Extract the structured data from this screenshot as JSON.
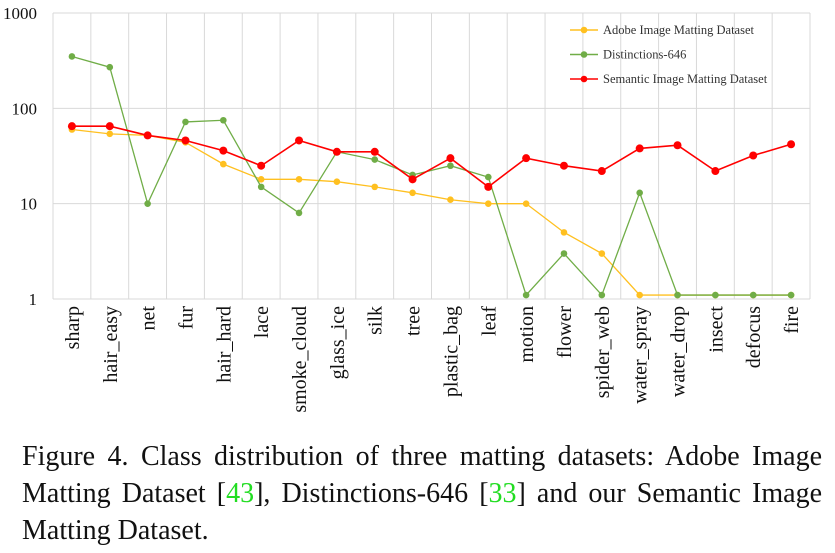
{
  "chart_data": {
    "type": "line",
    "title": "",
    "xlabel": "",
    "ylabel": "",
    "yscale": "log",
    "ylim": [
      1,
      1000
    ],
    "yticks": [
      "1",
      "10",
      "100",
      "1000"
    ],
    "grid": true,
    "legend_position": "top-right",
    "categories": [
      "sharp",
      "hair_easy",
      "net",
      "fur",
      "hair_hard",
      "lace",
      "smoke_cloud",
      "glass_ice",
      "silk",
      "tree",
      "plastic_bag",
      "leaf",
      "motion",
      "flower",
      "spider_web",
      "water_spray",
      "water_drop",
      "insect",
      "defocus",
      "fire"
    ],
    "series": [
      {
        "name": "Adobe Image Matting Dataset",
        "color": "#ffc020",
        "values": [
          60,
          54,
          52,
          44,
          26,
          18,
          18,
          17,
          15,
          13,
          11,
          10,
          10,
          5,
          3,
          1.1,
          1.1,
          1.1,
          1.1,
          1.1
        ]
      },
      {
        "name": "Distinctions-646",
        "color": "#70ad47",
        "values": [
          350,
          270,
          10,
          72,
          75,
          15,
          8,
          35,
          29,
          20,
          25,
          19,
          1.1,
          3,
          1.1,
          13,
          1.1,
          1.1,
          1.1,
          1.1
        ]
      },
      {
        "name": "Semantic Image Matting Dataset",
        "color": "#ff0000",
        "values": [
          65,
          65,
          52,
          46,
          36,
          25,
          46,
          35,
          35,
          18,
          30,
          15,
          30,
          25,
          22,
          38,
          41,
          22,
          32,
          42
        ]
      }
    ]
  },
  "caption": {
    "part1": "Figure 4. Class distribution of three matting datasets: Adobe Image Matting Dataset [",
    "cite1": "43",
    "part2": "], Distinctions-646 [",
    "cite2": "33",
    "part3": "] and our Semantic Image Matting Dataset."
  }
}
